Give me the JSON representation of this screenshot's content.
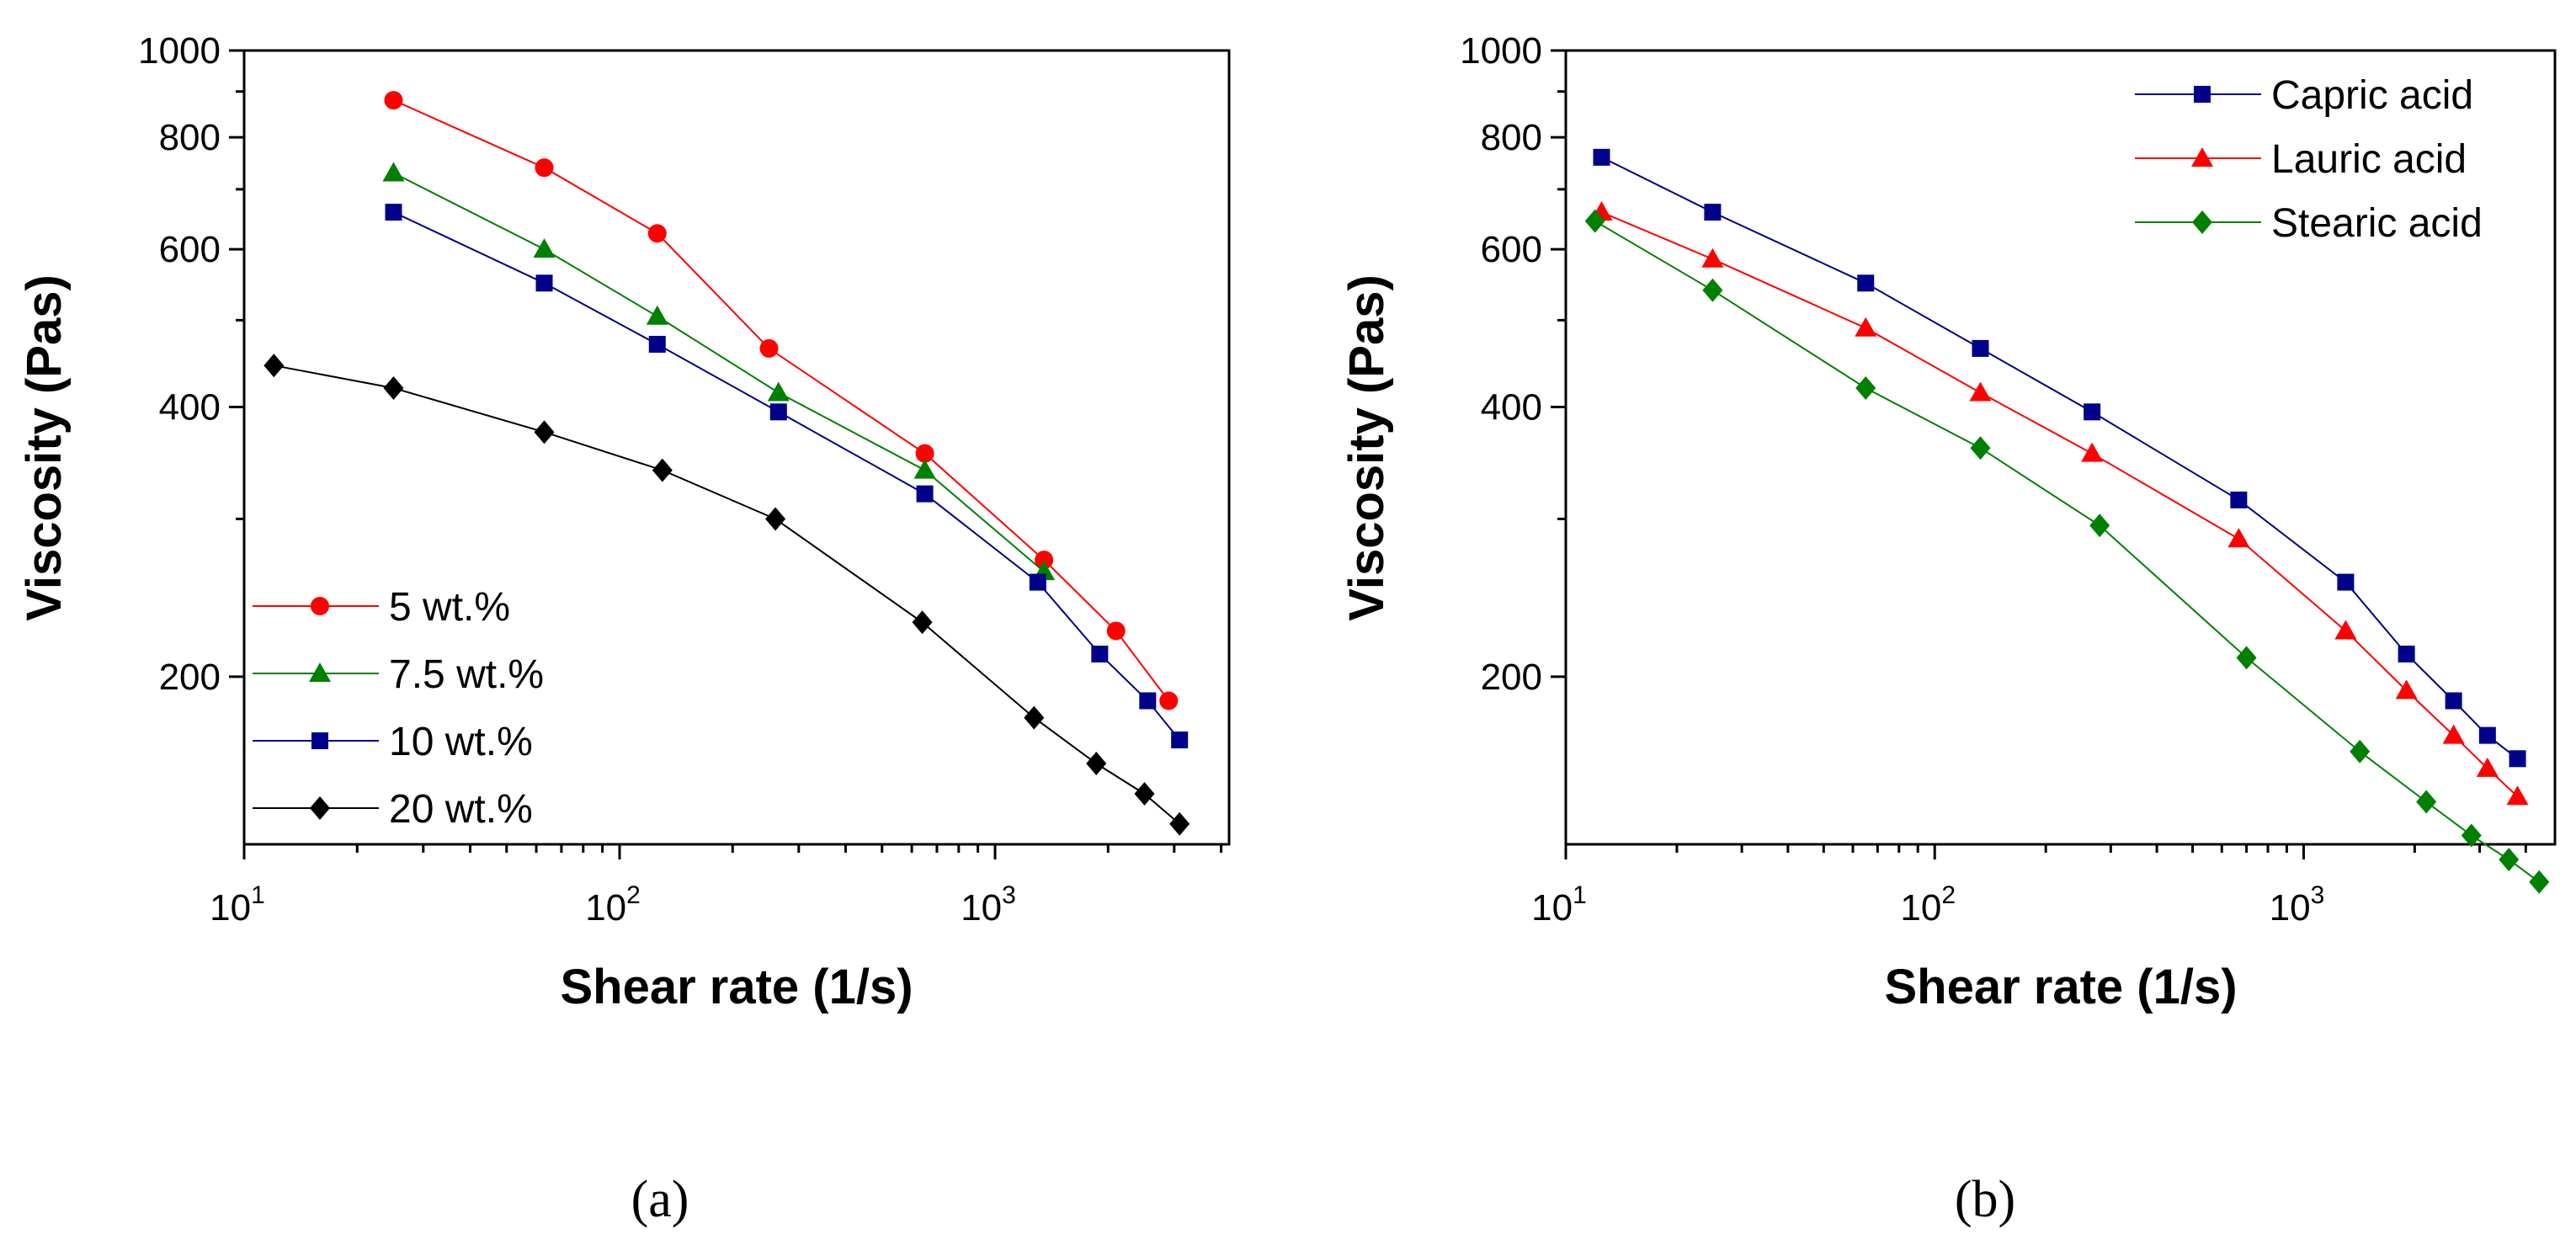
{
  "chart_data": [
    {
      "type": "line",
      "panel_label": "(a)",
      "xlabel": "Shear rate (1/s)",
      "ylabel": "Viscosity (Pas)",
      "x_scale": "log",
      "y_scale": "log",
      "xlim": [
        10,
        4200
      ],
      "ylim": [
        130,
        1000
      ],
      "x_ticks": [
        {
          "value": 10,
          "base": "10",
          "exp": "1"
        },
        {
          "value": 100,
          "base": "10",
          "exp": "2"
        },
        {
          "value": 1000,
          "base": "10",
          "exp": "3"
        }
      ],
      "y_ticks": [
        {
          "value": 200,
          "label": "200"
        },
        {
          "value": 400,
          "label": "400"
        },
        {
          "value": 600,
          "label": "600"
        },
        {
          "value": 800,
          "label": "800"
        },
        {
          "value": 1000,
          "label": "1000"
        }
      ],
      "legend_position": "bottom-left",
      "series": [
        {
          "name": "5 wt.%",
          "color": "#ff0000",
          "marker": "circle",
          "x": [
            25,
            63,
            126,
            250,
            650,
            1350,
            2100,
            2900
          ],
          "y": [
            880,
            740,
            625,
            465,
            355,
            270,
            225,
            188
          ]
        },
        {
          "name": "7.5 wt.%",
          "color": "#008000",
          "marker": "triangle",
          "x": [
            25,
            63,
            126,
            265,
            650,
            1350
          ],
          "y": [
            730,
            600,
            505,
            415,
            340,
            262
          ]
        },
        {
          "name": "10 wt.%",
          "color": "#00008b",
          "marker": "square",
          "x": [
            25,
            63,
            126,
            265,
            650,
            1300,
            1900,
            2550,
            3100
          ],
          "y": [
            660,
            550,
            470,
            395,
            320,
            255,
            212,
            188,
            170
          ]
        },
        {
          "name": "20 wt.%",
          "color": "#000000",
          "marker": "diamond",
          "x": [
            12,
            25,
            63,
            130,
            260,
            640,
            1270,
            1860,
            2500,
            3100
          ],
          "y": [
            445,
            420,
            375,
            340,
            300,
            230,
            180,
            160,
            148,
            137
          ]
        }
      ]
    },
    {
      "type": "line",
      "panel_label": "(b)",
      "xlabel": "Shear rate (1/s)",
      "ylabel": "Viscosity (Pas)",
      "x_scale": "log",
      "y_scale": "log",
      "xlim": [
        10,
        4800
      ],
      "ylim": [
        130,
        1000
      ],
      "x_ticks": [
        {
          "value": 10,
          "base": "10",
          "exp": "1"
        },
        {
          "value": 100,
          "base": "10",
          "exp": "2"
        },
        {
          "value": 1000,
          "base": "10",
          "exp": "3"
        }
      ],
      "y_ticks": [
        {
          "value": 200,
          "label": "200"
        },
        {
          "value": 400,
          "label": "400"
        },
        {
          "value": 600,
          "label": "600"
        },
        {
          "value": 800,
          "label": "800"
        },
        {
          "value": 1000,
          "label": "1000"
        }
      ],
      "legend_position": "top-right",
      "series": [
        {
          "name": "Capric acid",
          "color": "#00008b",
          "marker": "square",
          "x": [
            12.5,
            25,
            65,
            133,
            267,
            667,
            1300,
            1900,
            2550,
            3150,
            3800
          ],
          "y": [
            760,
            660,
            550,
            465,
            395,
            315,
            255,
            212,
            188,
            172,
            162
          ]
        },
        {
          "name": "Lauric acid",
          "color": "#ff0000",
          "marker": "triangle",
          "x": [
            12.5,
            25,
            65,
            133,
            267,
            667,
            1300,
            1900,
            2550,
            3150,
            3800
          ],
          "y": [
            660,
            585,
            490,
            415,
            355,
            285,
            225,
            193,
            172,
            158,
            147
          ]
        },
        {
          "name": "Stearic acid",
          "color": "#008000",
          "marker": "diamond",
          "x": [
            12,
            25,
            65,
            133,
            280,
            700,
            1420,
            2150,
            2850,
            3600,
            4350
          ],
          "y": [
            645,
            540,
            420,
            360,
            295,
            210,
            165,
            145,
            133,
            125,
            118
          ]
        }
      ]
    }
  ]
}
